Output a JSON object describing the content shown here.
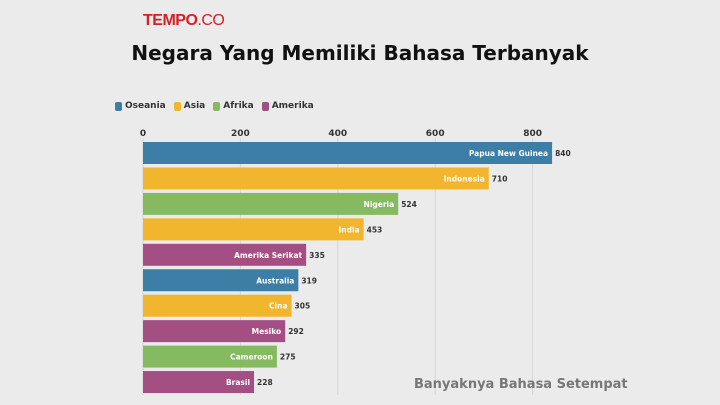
{
  "brand": {
    "name_bold": "TEMPO",
    "name_light": ".CO"
  },
  "colors": {
    "Oseania": "#3d7ea6",
    "Asia": "#f2b52e",
    "Afrika": "#86ba60",
    "Amerika": "#a44f83"
  },
  "legend": [
    {
      "name": "Oseania",
      "color": "#3d7ea6"
    },
    {
      "name": "Asia",
      "color": "#f2b52e"
    },
    {
      "name": "Afrika",
      "color": "#86ba60"
    },
    {
      "name": "Amerika",
      "color": "#a44f83"
    }
  ],
  "chart_data": {
    "type": "bar",
    "orientation": "horizontal",
    "title": "Negara Yang Memiliki Bahasa Terbanyak",
    "caption": "Banyaknya Bahasa Setempat",
    "categories": [
      "Papua New Guinea",
      "Indonesia",
      "Nigeria",
      "India",
      "Amerika Serikat",
      "Australia",
      "Cina",
      "Mesiko",
      "Cameroon",
      "Brasil"
    ],
    "values": [
      840,
      710,
      524,
      453,
      335,
      319,
      305,
      292,
      275,
      228
    ],
    "groups": [
      "Oseania",
      "Asia",
      "Afrika",
      "Asia",
      "Amerika",
      "Oseania",
      "Asia",
      "Amerika",
      "Afrika",
      "Amerika"
    ],
    "xlim": [
      0,
      880
    ],
    "xticks": [
      0,
      200,
      400,
      600,
      800
    ],
    "grid": true,
    "legend_position": "top-left"
  }
}
